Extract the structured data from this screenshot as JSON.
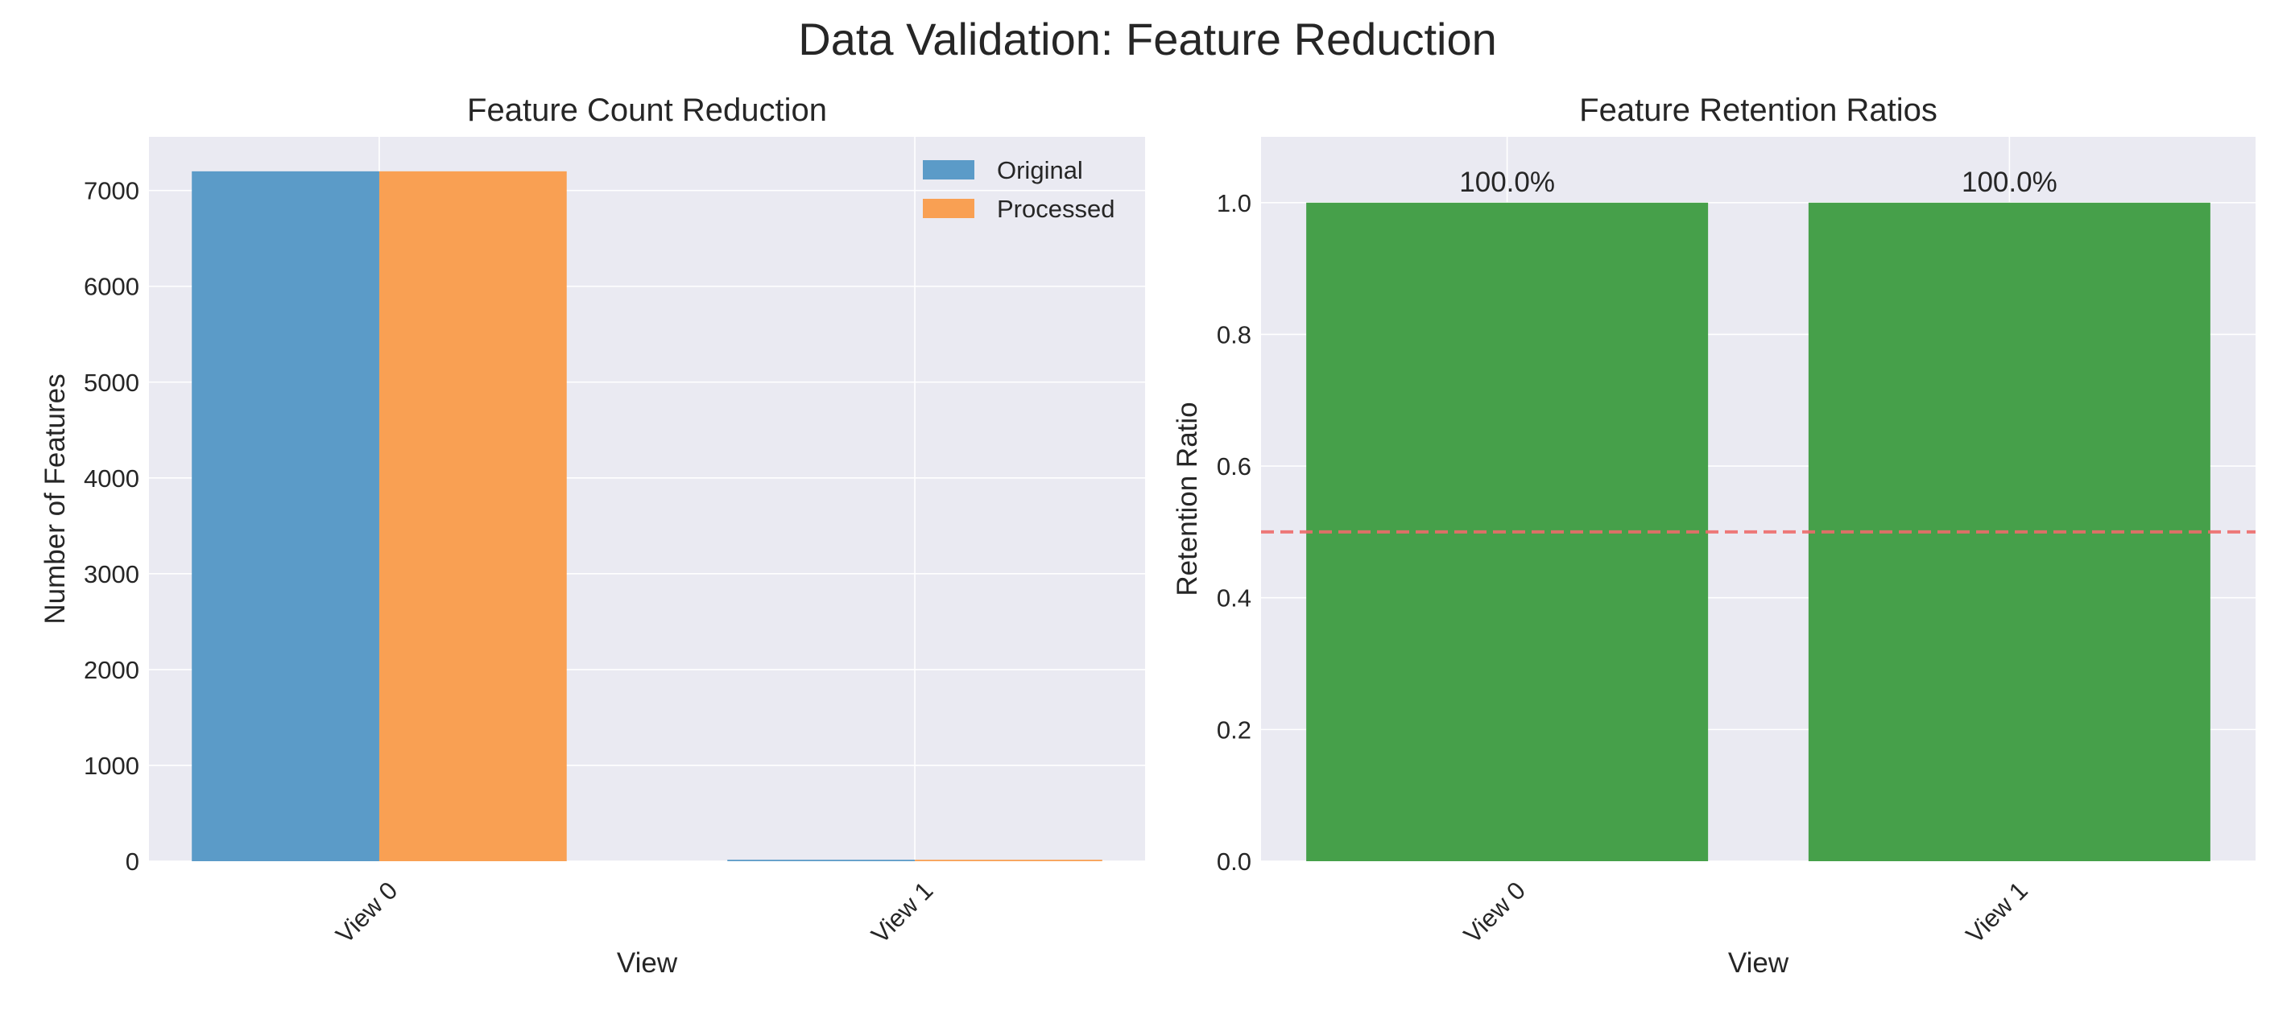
{
  "figure": {
    "title": "Data Validation: Feature Reduction"
  },
  "colors": {
    "axes_bg": "#eaeaf2",
    "grid": "#ffffff",
    "original": "#5b9bc8",
    "processed": "#f9a053",
    "retention": "#46a04a",
    "threshold": "#ee6b6b",
    "text": "#262626"
  },
  "chart_data": [
    {
      "type": "bar",
      "title": "Feature Count Reduction",
      "xlabel": "View",
      "ylabel": "Number of Features",
      "categories": [
        "View 0",
        "View 1"
      ],
      "series": [
        {
          "name": "Original",
          "values": [
            7200,
            15
          ]
        },
        {
          "name": "Processed",
          "values": [
            7200,
            15
          ]
        }
      ],
      "ylim": [
        0,
        7560
      ],
      "yticks": [
        0,
        1000,
        2000,
        3000,
        4000,
        5000,
        6000,
        7000
      ],
      "grid": true,
      "legend": "top-right"
    },
    {
      "type": "bar",
      "title": "Feature Retention Ratios",
      "xlabel": "View",
      "ylabel": "Retention Ratio",
      "categories": [
        "View 0",
        "View 1"
      ],
      "values": [
        1.0,
        1.0
      ],
      "data_labels": [
        "100.0%",
        "100.0%"
      ],
      "ylim": [
        0,
        1.1
      ],
      "yticks": [
        "0.0",
        "0.2",
        "0.4",
        "0.6",
        "0.8",
        "1.0"
      ],
      "reference_line": {
        "y": 0.5,
        "style": "dashed"
      },
      "grid": true
    }
  ]
}
